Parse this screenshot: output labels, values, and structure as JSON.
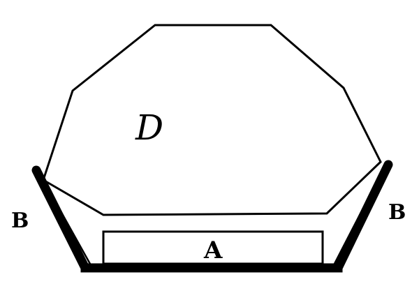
{
  "figure": {
    "labels": {
      "top_shape": "D",
      "bottom_rect": "A",
      "left_side": "B",
      "right_side": "B"
    },
    "colors": {
      "ink": "#000000",
      "paper": "#ffffff"
    }
  }
}
